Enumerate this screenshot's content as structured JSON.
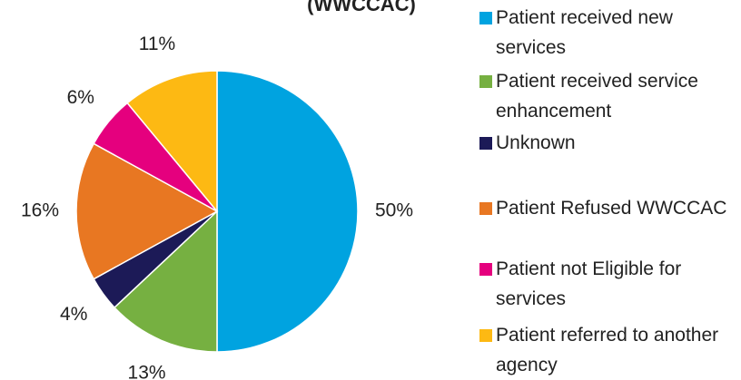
{
  "chart_data": {
    "type": "pie",
    "title": "(WWCCAC)",
    "categories": [
      "Patient received new services",
      "Patient received service enhancement",
      "Unknown",
      "Patient Refused WWCCAC",
      "Patient not Eligible for services",
      "Patient referred to another agency"
    ],
    "values": [
      50,
      13,
      4,
      16,
      6,
      11
    ],
    "value_labels": [
      "50%",
      "13%",
      "4%",
      "16%",
      "6%",
      "11%"
    ],
    "colors": [
      "#00a3e0",
      "#76b041",
      "#1c1a57",
      "#e87722",
      "#e5007e",
      "#fdb913"
    ],
    "legend": "right"
  }
}
